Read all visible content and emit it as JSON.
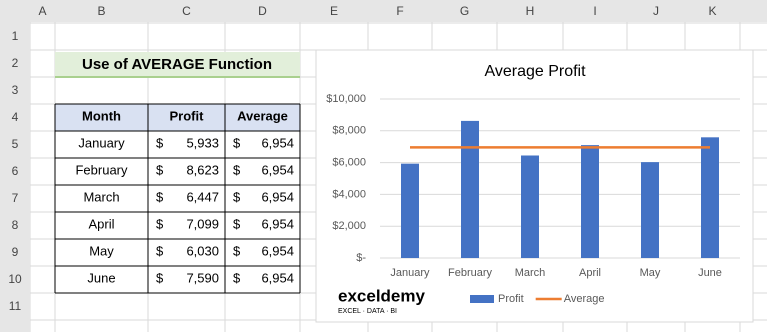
{
  "column_headers": [
    "A",
    "B",
    "C",
    "D",
    "E",
    "F",
    "G",
    "H",
    "I",
    "J",
    "K"
  ],
  "row_headers": [
    1,
    2,
    3,
    4,
    5,
    6,
    7,
    8,
    9,
    10,
    11
  ],
  "sheet_title": "Use of AVERAGE Function",
  "table": {
    "header": [
      "Month",
      "Profit",
      "Average"
    ],
    "currency": "$",
    "rows": [
      [
        "January",
        "5,933",
        "6,954"
      ],
      [
        "February",
        "8,623",
        "6,954"
      ],
      [
        "March",
        "6,447",
        "6,954"
      ],
      [
        "April",
        "7,099",
        "6,954"
      ],
      [
        "May",
        "6,030",
        "6,954"
      ],
      [
        "June",
        "7,590",
        "6,954"
      ]
    ]
  },
  "chart_data": {
    "type": "bar",
    "title": "Average Profit",
    "categories": [
      "January",
      "February",
      "March",
      "April",
      "May",
      "June"
    ],
    "series": [
      {
        "name": "Profit",
        "type": "bar",
        "color": "#4472c4",
        "values": [
          5933,
          8623,
          6447,
          7099,
          6030,
          7590
        ]
      },
      {
        "name": "Average",
        "type": "line",
        "color": "#ed7d31",
        "values": [
          6954,
          6954,
          6954,
          6954,
          6954,
          6954
        ]
      }
    ],
    "ylim": [
      0,
      10000
    ],
    "yticks": [
      {
        "value": 0,
        "label": "$-"
      },
      {
        "value": 2000,
        "label": "$2,000"
      },
      {
        "value": 4000,
        "label": "$4,000"
      },
      {
        "value": 6000,
        "label": "$6,000"
      },
      {
        "value": 8000,
        "label": "$8,000"
      },
      {
        "value": 10000,
        "label": "$10,000"
      }
    ],
    "grid": true,
    "legend": "bottom"
  },
  "watermark": {
    "name": "exceldemy",
    "tagline": "EXCEL · DATA · BI"
  }
}
